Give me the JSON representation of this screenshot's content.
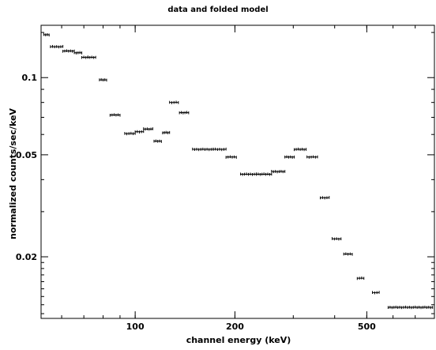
{
  "chart_data": {
    "type": "scatter",
    "title": "data and folded model",
    "xlabel": "channel energy (keV)",
    "ylabel": "normalized counts/sec/keV",
    "x_scale": "log",
    "y_scale": "log",
    "xlim": [
      52,
      800
    ],
    "ylim": [
      0.0115,
      0.16
    ],
    "x_ticks": [
      100,
      200,
      500
    ],
    "y_ticks": [
      0.02,
      0.05,
      0.1
    ],
    "grid": false,
    "series": [
      {
        "points": [
          {
            "x": 54,
            "y": 0.147,
            "xerr": [
              53,
              55
            ]
          },
          {
            "x": 58,
            "y": 0.132,
            "xerr": [
              55.5,
              60.5
            ]
          },
          {
            "x": 63,
            "y": 0.127,
            "xerr": [
              60.5,
              65.5
            ]
          },
          {
            "x": 67,
            "y": 0.125,
            "xerr": [
              65.5,
              69
            ]
          },
          {
            "x": 70.5,
            "y": 0.12,
            "xerr": [
              69,
              72
            ]
          },
          {
            "x": 74,
            "y": 0.12,
            "xerr": [
              72,
              76
            ]
          },
          {
            "x": 80,
            "y": 0.098,
            "xerr": [
              78,
              82
            ]
          },
          {
            "x": 87,
            "y": 0.0715,
            "xerr": [
              84,
              90
            ]
          },
          {
            "x": 96,
            "y": 0.0605,
            "xerr": [
              93,
              100
            ]
          },
          {
            "x": 103,
            "y": 0.0615,
            "xerr": [
              100,
              106
            ]
          },
          {
            "x": 109,
            "y": 0.063,
            "xerr": [
              106,
              113
            ]
          },
          {
            "x": 117,
            "y": 0.0565,
            "xerr": [
              114,
              120
            ]
          },
          {
            "x": 124,
            "y": 0.061,
            "xerr": [
              121,
              127
            ]
          },
          {
            "x": 131,
            "y": 0.08,
            "xerr": [
              127,
              135
            ]
          },
          {
            "x": 140,
            "y": 0.073,
            "xerr": [
              136,
              145
            ]
          },
          {
            "x": 160,
            "y": 0.0525,
            "xerr": [
              149,
              172
            ]
          },
          {
            "x": 180,
            "y": 0.0525,
            "xerr": [
              172,
              188
            ]
          },
          {
            "x": 195,
            "y": 0.049,
            "xerr": [
              188,
              202
            ]
          },
          {
            "x": 220,
            "y": 0.042,
            "xerr": [
              208,
              232
            ]
          },
          {
            "x": 245,
            "y": 0.042,
            "xerr": [
              232,
              258
            ]
          },
          {
            "x": 270,
            "y": 0.043,
            "xerr": [
              258,
              283
            ]
          },
          {
            "x": 292,
            "y": 0.049,
            "xerr": [
              283,
              302
            ]
          },
          {
            "x": 315,
            "y": 0.0525,
            "xerr": [
              302,
              328
            ]
          },
          {
            "x": 342,
            "y": 0.049,
            "xerr": [
              330,
              355
            ]
          },
          {
            "x": 372,
            "y": 0.034,
            "xerr": [
              362,
              385
            ]
          },
          {
            "x": 405,
            "y": 0.0235,
            "xerr": [
              393,
              418
            ]
          },
          {
            "x": 438,
            "y": 0.0205,
            "xerr": [
              426,
              452
            ]
          },
          {
            "x": 478,
            "y": 0.0165,
            "xerr": [
              468,
              490
            ]
          },
          {
            "x": 530,
            "y": 0.0145,
            "xerr": [
              520,
              545
            ]
          },
          {
            "x": 660,
            "y": 0.0127,
            "xerr": [
              580,
              790
            ]
          }
        ]
      }
    ]
  }
}
